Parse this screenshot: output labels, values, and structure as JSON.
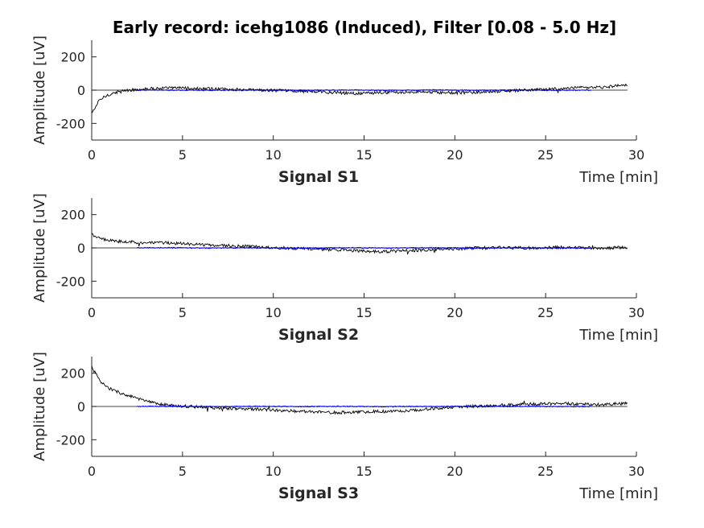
{
  "chart_data": {
    "title": "Early record: icehg1086 (Induced), Filter [0.08 - 5.0 Hz]",
    "type": "line",
    "xlim": [
      0,
      30
    ],
    "ylim": [
      -300,
      300
    ],
    "x_ticks": [
      0,
      5,
      10,
      15,
      20,
      25,
      30
    ],
    "y_ticks": [
      -200,
      0,
      200
    ],
    "xlabel": "Time [min]",
    "ylabel": "Amplitude [uV]",
    "colors": {
      "raw": "#000000",
      "filtered": "#0000ff",
      "zero_line": "#000000"
    },
    "subplots": [
      {
        "name": "Signal S1",
        "series": [
          {
            "color": "raw",
            "x_range": [
              0,
              29.5
            ],
            "values": [
              -140,
              -60,
              -30,
              -15,
              -5,
              0,
              5,
              8,
              10,
              12,
              12,
              14,
              12,
              10,
              8,
              8,
              6,
              5,
              4,
              3,
              2,
              0,
              -1,
              -2,
              -3,
              -4,
              -5,
              -6,
              -8,
              -10,
              -12,
              -14,
              -16,
              -18,
              -20,
              -20,
              -18,
              -16,
              -14,
              -12,
              -12,
              -10,
              -10,
              -12,
              -14,
              -15,
              -16,
              -16,
              -15,
              -14,
              -12,
              -10,
              -8,
              -6,
              -4,
              -2,
              0,
              2,
              4,
              6,
              8,
              10,
              12,
              14,
              15,
              16,
              18,
              22,
              28,
              30
            ]
          },
          {
            "color": "filtered",
            "x_range": [
              2.5,
              27.5
            ],
            "values": [
              0,
              1,
              0,
              -1,
              0,
              1,
              0,
              -1,
              0,
              1,
              0,
              -1,
              0,
              1,
              0,
              -1,
              0,
              1,
              0,
              -1,
              0
            ]
          }
        ]
      },
      {
        "name": "Signal S2",
        "series": [
          {
            "color": "raw",
            "x_range": [
              0,
              29.5
            ],
            "values": [
              80,
              55,
              45,
              40,
              38,
              35,
              32,
              30,
              30,
              32,
              28,
              25,
              22,
              20,
              18,
              16,
              14,
              12,
              10,
              8,
              6,
              4,
              2,
              0,
              -2,
              -4,
              -6,
              -8,
              -10,
              -12,
              -14,
              -16,
              -18,
              -20,
              -22,
              -22,
              -20,
              -18,
              -16,
              -14,
              -12,
              -10,
              -8,
              -6,
              -4,
              -2,
              0,
              0,
              0,
              2,
              2,
              0,
              0,
              -2,
              0,
              2,
              4,
              4,
              2,
              0,
              0,
              -2,
              0,
              2,
              0
            ]
          },
          {
            "color": "filtered",
            "x_range": [
              2.5,
              27.5
            ],
            "values": [
              0,
              1,
              0,
              -1,
              0,
              1,
              0,
              -1,
              0,
              1,
              0,
              -1,
              0,
              1,
              0,
              -1,
              0,
              1,
              0,
              -1,
              0
            ]
          }
        ]
      },
      {
        "name": "Signal S3",
        "series": [
          {
            "color": "raw",
            "x_range": [
              0,
              29.5
            ],
            "values": [
              240,
              150,
              110,
              90,
              70,
              55,
              40,
              25,
              15,
              8,
              4,
              2,
              0,
              -2,
              -5,
              -8,
              -10,
              -12,
              -14,
              -16,
              -18,
              -20,
              -22,
              -25,
              -28,
              -30,
              -32,
              -34,
              -35,
              -36,
              -36,
              -35,
              -34,
              -32,
              -30,
              -30,
              -28,
              -26,
              -24,
              -20,
              -16,
              -12,
              -8,
              -4,
              -2,
              0,
              2,
              4,
              6,
              8,
              10,
              12,
              14,
              14,
              15,
              16,
              18,
              16,
              15,
              14,
              12,
              12,
              14,
              16,
              18
            ]
          },
          {
            "color": "filtered",
            "x_range": [
              2.5,
              27.5
            ],
            "values": [
              0,
              1,
              0,
              -1,
              0,
              1,
              0,
              -1,
              0,
              1,
              0,
              -1,
              0,
              1,
              0,
              -1,
              0,
              1,
              0,
              -1,
              0
            ]
          }
        ]
      }
    ]
  }
}
